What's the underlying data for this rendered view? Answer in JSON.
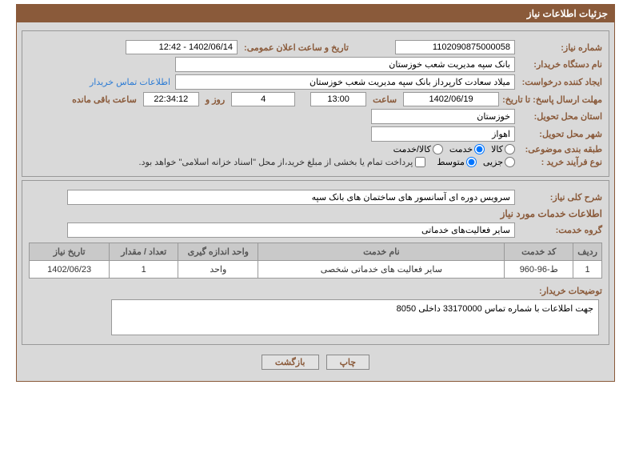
{
  "panelTitle": "جزئیات اطلاعات نیاز",
  "fields": {
    "needNumber": {
      "label": "شماره نیاز:",
      "value": "1102090875000058"
    },
    "announceDate": {
      "label": "تاریخ و ساعت اعلان عمومی:",
      "value": "1402/06/14 - 12:42"
    },
    "buyerOrg": {
      "label": "نام دستگاه خریدار:",
      "value": "بانک سپه مدیریت شعب خوزستان"
    },
    "requester": {
      "label": "ایجاد کننده درخواست:",
      "value": "میلاد سعادت کارپرداز بانک سپه مدیریت شعب خوزستان"
    },
    "contactLink": "اطلاعات تماس خریدار",
    "deadline": {
      "label": "مهلت ارسال پاسخ: تا تاریخ:",
      "date": "1402/06/19",
      "timeLabel": "ساعت",
      "time": "13:00"
    },
    "remaining": {
      "days": "4",
      "daysLabel": "روز و",
      "clock": "22:34:12",
      "suffix": "ساعت باقی مانده"
    },
    "province": {
      "label": "استان محل تحویل:",
      "value": "خوزستان"
    },
    "city": {
      "label": "شهر محل تحویل:",
      "value": "اهواز"
    },
    "subjectClass": {
      "label": "طبقه بندی موضوعی:"
    },
    "purchaseType": {
      "label": "نوع فرآیند خرید :"
    },
    "needDesc": {
      "label": "شرح کلی نیاز:",
      "value": "سرویس دوره ای آسانسور های ساختمان های بانک سپه"
    },
    "servicesInfo": "اطلاعات خدمات مورد نیاز",
    "serviceGroup": {
      "label": "گروه خدمت:",
      "value": "سایر فعالیت‌های خدماتی"
    },
    "buyerNotes": {
      "label": "توضیحات خریدار:",
      "value": "جهت اطلاعات با شماره تماس 33170000 داخلی 8050"
    }
  },
  "classification": {
    "options": [
      "کالا",
      "خدمت",
      "کالا/خدمت"
    ],
    "selected": 1
  },
  "processType": {
    "options": [
      "جزیی",
      "متوسط"
    ],
    "selected": 1,
    "checkboxLabel": "پرداخت تمام یا بخشی از مبلغ خرید،از محل \"اسناد خزانه اسلامی\" خواهد بود."
  },
  "table": {
    "headers": [
      "ردیف",
      "کد خدمت",
      "نام خدمت",
      "واحد اندازه گیری",
      "تعداد / مقدار",
      "تاریخ نیاز"
    ],
    "rows": [
      [
        "1",
        "ط-96-960",
        "سایر فعالیت های خدماتی شخصی",
        "واحد",
        "1",
        "1402/06/23"
      ]
    ]
  },
  "buttons": {
    "print": "چاپ",
    "back": "بازگشت"
  }
}
